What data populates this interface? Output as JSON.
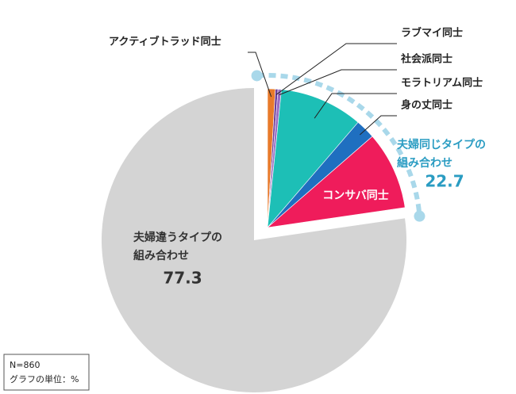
{
  "chart_data": {
    "type": "pie",
    "slices": [
      {
        "name": "アクティブトラッド同士",
        "value": 0.9,
        "color": "#e87a2b"
      },
      {
        "name": "ラブマイ同士",
        "value": 0.3,
        "color": "#6a3d9a"
      },
      {
        "name": "社会派同士",
        "value": 0.4,
        "color": "#9a6cc4"
      },
      {
        "name": "モラトリアム同士",
        "value": 9.7,
        "color": "#1dbfb6"
      },
      {
        "name": "身の丈同士",
        "value": 2.3,
        "color": "#1f6fc0"
      },
      {
        "name": "コンサバ同士",
        "value": 9.1,
        "color": "#ef1c5b"
      }
    ],
    "groups": [
      {
        "lines": [
          "夫婦同じタイプの",
          "組み合わせ"
        ],
        "value": 22.7,
        "color": "#a9d8ea",
        "label_color": "#2a9cc2"
      },
      {
        "lines": [
          "夫婦違うタイプの",
          "組み合わせ"
        ],
        "value": 77.3,
        "color": "#d4d4d4",
        "label_color": "#333333"
      }
    ],
    "notes": [
      "N=860",
      "グラフの単位：%"
    ]
  }
}
